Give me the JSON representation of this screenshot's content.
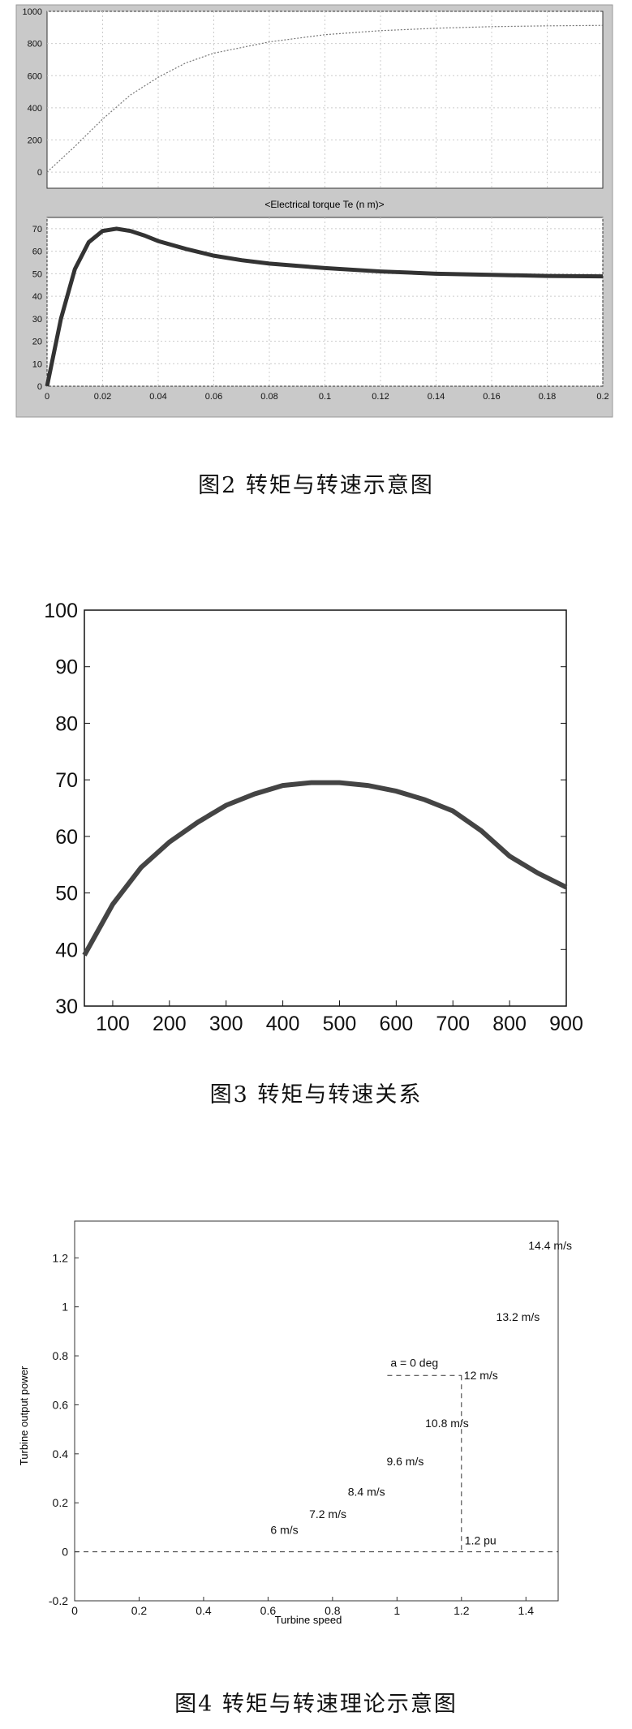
{
  "captions": {
    "fig2": "图2  转矩与转速示意图",
    "fig3": "图3  转矩与转速关系",
    "fig4": "图4  转矩与转速理论示意图"
  },
  "chart_data": [
    {
      "id": "fig2-top",
      "type": "line",
      "title": "",
      "ylim": [
        -100,
        1000
      ],
      "xlim": [
        0,
        0.2
      ],
      "y_ticks": [
        "1000",
        "800",
        "600",
        "400",
        "200",
        "0"
      ],
      "x": [
        0,
        0.01,
        0.02,
        0.03,
        0.04,
        0.05,
        0.06,
        0.08,
        0.1,
        0.12,
        0.14,
        0.16,
        0.18,
        0.2
      ],
      "series": [
        {
          "values": [
            0,
            160,
            330,
            480,
            590,
            680,
            740,
            810,
            855,
            880,
            895,
            905,
            910,
            913
          ]
        }
      ],
      "grid": true
    },
    {
      "id": "fig2-bottom",
      "type": "line",
      "title": "<Electrical torque Te (n m)>",
      "ylim": [
        0,
        75
      ],
      "xlim": [
        0,
        0.2
      ],
      "y_ticks": [
        "70",
        "60",
        "50",
        "40",
        "30",
        "20",
        "10",
        "0"
      ],
      "x_ticks": [
        "0",
        "0.02",
        "0.04",
        "0.06",
        "0.08",
        "0.1",
        "0.12",
        "0.14",
        "0.16",
        "0.18",
        "0.2"
      ],
      "x": [
        0,
        0.005,
        0.01,
        0.015,
        0.02,
        0.025,
        0.03,
        0.035,
        0.04,
        0.05,
        0.06,
        0.07,
        0.08,
        0.1,
        0.12,
        0.14,
        0.16,
        0.18,
        0.2
      ],
      "series": [
        {
          "values": [
            0,
            30,
            52,
            64,
            69,
            70,
            69,
            67,
            64.5,
            61,
            58,
            56,
            54.5,
            52.5,
            51,
            50,
            49.5,
            49,
            48.8
          ]
        }
      ],
      "grid": true
    },
    {
      "id": "fig3",
      "type": "line",
      "xlim": [
        50,
        900
      ],
      "ylim": [
        30,
        100
      ],
      "y_ticks": [
        "100",
        "90",
        "80",
        "70",
        "60",
        "50",
        "40",
        "30"
      ],
      "x_ticks": [
        "100",
        "200",
        "300",
        "400",
        "500",
        "600",
        "700",
        "800",
        "900"
      ],
      "x": [
        50,
        100,
        150,
        200,
        250,
        300,
        350,
        400,
        450,
        500,
        550,
        600,
        650,
        700,
        750,
        800,
        850,
        900
      ],
      "series": [
        {
          "values": [
            39,
            48,
            54.5,
            59,
            62.5,
            65.5,
            67.5,
            69,
            69.5,
            69.5,
            69,
            68,
            66.5,
            64.5,
            61,
            56.5,
            53.5,
            51
          ]
        }
      ],
      "grid": false
    },
    {
      "id": "fig4",
      "type": "line",
      "xlabel": "Turbine speed",
      "ylabel": "Turbine output power",
      "xlim": [
        0,
        1.5
      ],
      "ylim": [
        -0.2,
        1.35
      ],
      "x_ticks": [
        "0",
        "0.2",
        "0.4",
        "0.6",
        "0.8",
        "1",
        "1.2",
        "1.4"
      ],
      "y_ticks": [
        "1.2",
        "1",
        "0.8",
        "0.6",
        "0.4",
        "0.2",
        "0",
        "-0.2"
      ],
      "series": [
        {
          "name": "14.4 m/s",
          "peak_x": 1.4,
          "peak_y": 1.25
        },
        {
          "name": "13.2 m/s",
          "peak_x": 1.3,
          "peak_y": 0.96
        },
        {
          "name": "12 m/s",
          "peak_x": 1.2,
          "peak_y": 0.72
        },
        {
          "name": "10.8 m/s",
          "peak_x": 1.08,
          "peak_y": 0.525
        },
        {
          "name": "9.6 m/s",
          "peak_x": 0.96,
          "peak_y": 0.37
        },
        {
          "name": "8.4 m/s",
          "peak_x": 0.84,
          "peak_y": 0.245
        },
        {
          "name": "7.2 m/s",
          "peak_x": 0.72,
          "peak_y": 0.155
        },
        {
          "name": "6 m/s",
          "peak_x": 0.6,
          "peak_y": 0.09
        }
      ],
      "annotations": {
        "pitch": "a = 0 deg",
        "pu": "1.2 pu",
        "dash_x": 1.2,
        "dash_y": 0.72
      }
    }
  ]
}
